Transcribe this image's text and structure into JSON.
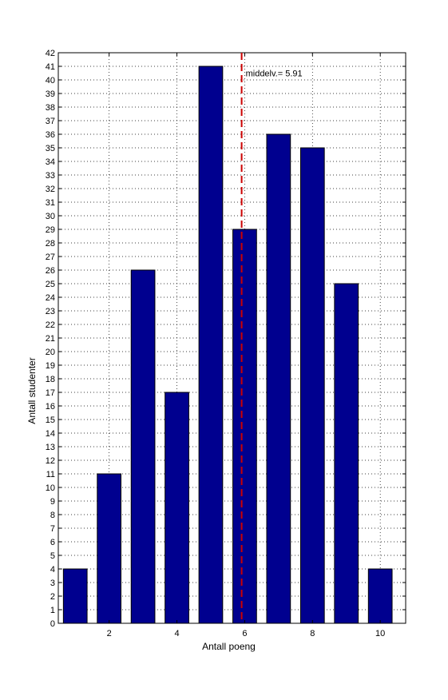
{
  "chart_data": {
    "type": "bar",
    "x": [
      1,
      2,
      3,
      4,
      5,
      6,
      7,
      8,
      9,
      10
    ],
    "values": [
      4,
      11,
      26,
      17,
      41,
      29,
      36,
      35,
      25,
      4
    ],
    "xlabel": "Antall poeng",
    "ylabel": "Antall studenter",
    "xlim": [
      0.5,
      10.75
    ],
    "ylim": [
      0,
      42
    ],
    "xticks": [
      2,
      4,
      6,
      8,
      10
    ],
    "yticks": [
      0,
      1,
      2,
      3,
      4,
      5,
      6,
      7,
      8,
      9,
      10,
      11,
      12,
      13,
      14,
      15,
      16,
      17,
      18,
      19,
      20,
      21,
      22,
      23,
      24,
      25,
      26,
      27,
      28,
      29,
      30,
      31,
      32,
      33,
      34,
      35,
      36,
      37,
      38,
      39,
      40,
      41,
      42
    ],
    "grid": true,
    "bar_color": "#00008f",
    "mean_line": {
      "value": 5.91,
      "color": "#cc0000",
      "style": "dashed"
    },
    "annotation": "middelv.=  5.91"
  }
}
